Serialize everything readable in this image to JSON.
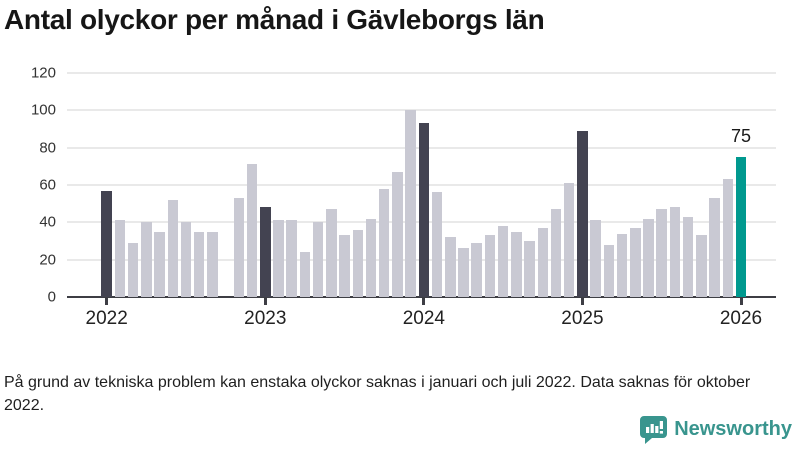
{
  "header": {
    "title": "Antal olyckor per månad i Gävleborgs län"
  },
  "chart_data": {
    "type": "bar",
    "title": "Antal olyckor per månad i Gävleborgs län",
    "xlabel": "",
    "ylabel": "",
    "x_axis": {
      "unit": "month",
      "tick_labels": [
        "2022",
        "2023",
        "2024",
        "2025",
        "2026"
      ]
    },
    "y_axis": {
      "ticks": [
        0,
        20,
        40,
        60,
        80,
        100,
        120
      ],
      "range": [
        0,
        120
      ],
      "grid": true
    },
    "legend": "none",
    "colors": {
      "default_bar": "#c9c9d3",
      "january_bar": "#434351",
      "latest_bar": "#00998f",
      "gridline": "#e9e9e9",
      "axis": "#3d3e44"
    },
    "years": [
      {
        "label": "2022",
        "values": [
          57,
          41,
          29,
          40,
          35,
          52,
          40,
          35,
          35,
          null,
          53,
          71
        ]
      },
      {
        "label": "2023",
        "values": [
          48,
          41,
          41,
          24,
          40,
          47,
          33,
          36,
          42,
          58,
          67,
          100
        ]
      },
      {
        "label": "2024",
        "values": [
          93,
          56,
          32,
          26,
          29,
          33,
          38,
          35,
          30,
          37,
          47,
          61
        ]
      },
      {
        "label": "2025",
        "values": [
          89,
          41,
          28,
          34,
          37,
          42,
          47,
          48,
          43,
          33,
          53,
          63
        ]
      },
      {
        "label": "2026",
        "values": [
          75
        ]
      }
    ],
    "annotation": {
      "text": "75",
      "applies_to": "latest_bar"
    },
    "missing_months": [
      "2022-10"
    ]
  },
  "footnote": {
    "text": "På grund av tekniska problem kan enstaka olyckor saknas i januari och juli 2022. Data saknas för oktober 2022."
  },
  "logo": {
    "text": "Newsworthy",
    "icon": "bar-chart-speech-bubble-icon",
    "color": "#39958e"
  }
}
